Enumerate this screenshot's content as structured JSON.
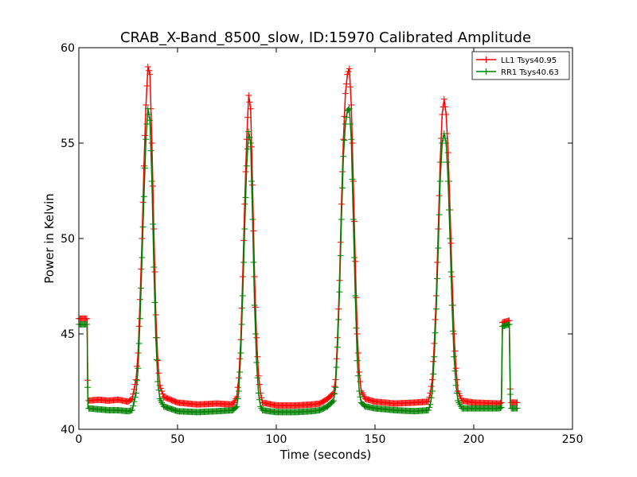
{
  "chart_data": {
    "type": "line",
    "title": "CRAB_X-Band_8500_slow, ID:15970 Calibrated Amplitude",
    "xlabel": "Time (seconds)",
    "ylabel": "Power in Kelvin",
    "xlim": [
      0,
      250
    ],
    "ylim": [
      40,
      60
    ],
    "x_ticks": [
      "0",
      "50",
      "100",
      "150",
      "200",
      "250"
    ],
    "y_ticks": [
      "40",
      "45",
      "50",
      "55",
      "60"
    ],
    "grid": false,
    "legend_position": "top-right",
    "marker": "plus",
    "series": [
      {
        "name": "LL1 Tsys40.95",
        "color": "#ff0000",
        "points": [
          [
            0,
            45.8
          ],
          [
            4.2,
            45.8
          ],
          [
            4.6,
            41.5
          ],
          [
            10,
            41.55
          ],
          [
            15,
            41.5
          ],
          [
            20,
            41.55
          ],
          [
            25,
            41.45
          ],
          [
            27,
            41.6
          ],
          [
            29,
            42.6
          ],
          [
            30,
            44.0
          ],
          [
            31,
            46.8
          ],
          [
            32,
            50.0
          ],
          [
            33,
            53.8
          ],
          [
            34,
            57.0
          ],
          [
            35,
            59.0
          ],
          [
            36,
            58.6
          ],
          [
            37,
            55.0
          ],
          [
            38,
            50.5
          ],
          [
            39,
            46.0
          ],
          [
            40,
            43.6
          ],
          [
            41,
            42.3
          ],
          [
            43,
            41.7
          ],
          [
            50,
            41.4
          ],
          [
            60,
            41.3
          ],
          [
            70,
            41.35
          ],
          [
            78,
            41.3
          ],
          [
            80,
            41.7
          ],
          [
            81,
            42.7
          ],
          [
            82,
            44.7
          ],
          [
            83,
            48.0
          ],
          [
            84,
            51.8
          ],
          [
            85,
            55.2
          ],
          [
            86,
            57.5
          ],
          [
            87,
            56.8
          ],
          [
            88,
            52.8
          ],
          [
            89,
            48.0
          ],
          [
            90,
            44.8
          ],
          [
            91,
            42.8
          ],
          [
            92,
            41.9
          ],
          [
            93,
            41.4
          ],
          [
            100,
            41.25
          ],
          [
            110,
            41.25
          ],
          [
            118,
            41.3
          ],
          [
            122,
            41.35
          ],
          [
            126,
            41.6
          ],
          [
            129,
            41.9
          ],
          [
            130,
            42.6
          ],
          [
            131,
            44.8
          ],
          [
            132,
            47.8
          ],
          [
            133,
            51.8
          ],
          [
            134,
            55.2
          ],
          [
            135,
            57.6
          ],
          [
            136,
            58.6
          ],
          [
            137,
            58.9
          ],
          [
            138,
            57.0
          ],
          [
            139,
            53.0
          ],
          [
            140,
            48.8
          ],
          [
            141,
            45.0
          ],
          [
            142,
            43.0
          ],
          [
            143,
            42.0
          ],
          [
            145,
            41.6
          ],
          [
            150,
            41.45
          ],
          [
            160,
            41.35
          ],
          [
            170,
            41.4
          ],
          [
            177,
            41.45
          ],
          [
            178,
            41.9
          ],
          [
            179,
            42.6
          ],
          [
            180,
            44.5
          ],
          [
            181,
            47.0
          ],
          [
            182,
            50.5
          ],
          [
            183,
            54.0
          ],
          [
            184,
            56.5
          ],
          [
            185,
            57.3
          ],
          [
            186,
            56.5
          ],
          [
            187,
            54.5
          ],
          [
            188,
            51.5
          ],
          [
            189,
            48.0
          ],
          [
            190,
            45.0
          ],
          [
            191,
            43.2
          ],
          [
            192,
            42.0
          ],
          [
            194,
            41.5
          ],
          [
            200,
            41.4
          ],
          [
            213,
            41.35
          ],
          [
            214,
            41.4
          ],
          [
            214.5,
            45.6
          ],
          [
            218,
            45.7
          ],
          [
            218.6,
            41.4
          ],
          [
            222,
            41.4
          ]
        ]
      },
      {
        "name": "RR1 Tsys40.63",
        "color": "#008000",
        "points": [
          [
            0,
            45.5
          ],
          [
            4.2,
            45.5
          ],
          [
            4.6,
            41.1
          ],
          [
            10,
            41.05
          ],
          [
            15,
            41.0
          ],
          [
            20,
            41.0
          ],
          [
            25,
            40.95
          ],
          [
            27,
            41.0
          ],
          [
            29,
            41.9
          ],
          [
            30,
            43.2
          ],
          [
            31,
            45.8
          ],
          [
            32,
            49.0
          ],
          [
            33,
            52.2
          ],
          [
            34,
            55.2
          ],
          [
            35,
            56.8
          ],
          [
            36,
            56.2
          ],
          [
            37,
            53.0
          ],
          [
            38,
            48.5
          ],
          [
            39,
            44.8
          ],
          [
            40,
            42.5
          ],
          [
            41,
            41.6
          ],
          [
            43,
            41.2
          ],
          [
            50,
            40.95
          ],
          [
            60,
            40.9
          ],
          [
            70,
            40.95
          ],
          [
            78,
            41.0
          ],
          [
            80,
            41.2
          ],
          [
            81,
            42.0
          ],
          [
            82,
            44.0
          ],
          [
            83,
            47.0
          ],
          [
            84,
            50.5
          ],
          [
            85,
            53.8
          ],
          [
            86,
            55.6
          ],
          [
            87,
            55.0
          ],
          [
            88,
            51.0
          ],
          [
            89,
            46.5
          ],
          [
            90,
            43.5
          ],
          [
            91,
            41.9
          ],
          [
            92,
            41.2
          ],
          [
            93,
            41.0
          ],
          [
            100,
            40.9
          ],
          [
            110,
            40.9
          ],
          [
            118,
            40.95
          ],
          [
            122,
            41.0
          ],
          [
            126,
            41.2
          ],
          [
            129,
            41.5
          ],
          [
            130,
            42.2
          ],
          [
            131,
            44.3
          ],
          [
            132,
            47.2
          ],
          [
            133,
            51.0
          ],
          [
            134,
            54.3
          ],
          [
            135,
            56.0
          ],
          [
            136,
            56.7
          ],
          [
            137,
            56.8
          ],
          [
            138,
            55.2
          ],
          [
            139,
            51.0
          ],
          [
            140,
            47.0
          ],
          [
            141,
            43.6
          ],
          [
            142,
            42.0
          ],
          [
            143,
            41.4
          ],
          [
            145,
            41.2
          ],
          [
            150,
            41.1
          ],
          [
            160,
            41.0
          ],
          [
            170,
            40.95
          ],
          [
            177,
            41.0
          ],
          [
            178,
            41.3
          ],
          [
            179,
            42.0
          ],
          [
            180,
            43.8
          ],
          [
            181,
            46.3
          ],
          [
            182,
            49.5
          ],
          [
            183,
            53.0
          ],
          [
            184,
            55.0
          ],
          [
            185,
            55.5
          ],
          [
            186,
            55.0
          ],
          [
            187,
            53.0
          ],
          [
            188,
            50.0
          ],
          [
            189,
            46.5
          ],
          [
            190,
            43.8
          ],
          [
            191,
            42.3
          ],
          [
            192,
            41.5
          ],
          [
            194,
            41.1
          ],
          [
            200,
            41.1
          ],
          [
            213,
            41.1
          ],
          [
            214,
            41.15
          ],
          [
            214.5,
            45.4
          ],
          [
            218,
            45.5
          ],
          [
            218.6,
            41.1
          ],
          [
            222,
            41.1
          ]
        ]
      }
    ]
  }
}
